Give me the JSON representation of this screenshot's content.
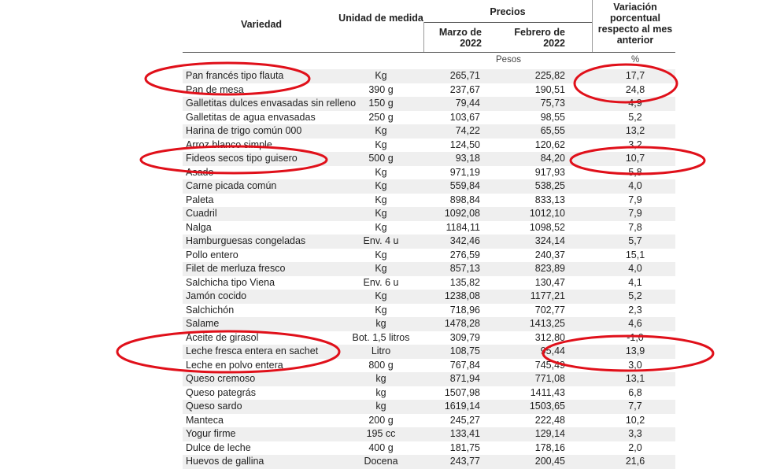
{
  "header": {
    "variedad": "Variedad",
    "unidad": "Unidad de medida",
    "precios": "Precios",
    "marzo": "Marzo de 2022",
    "febrero": "Febrero de 2022",
    "variacion": "Variación porcentual respecto al mes anterior",
    "pesos": "Pesos",
    "pct": "%"
  },
  "rows": [
    {
      "name": "Pan francés tipo flauta",
      "unit": "Kg",
      "mar": "265,71",
      "feb": "225,82",
      "var": "17,7"
    },
    {
      "name": "Pan de mesa",
      "unit": "390 g",
      "mar": "237,67",
      "feb": "190,51",
      "var": "24,8"
    },
    {
      "name": "Galletitas dulces envasadas sin relleno",
      "unit": "150 g",
      "mar": "79,44",
      "feb": "75,73",
      "var": "4,9"
    },
    {
      "name": "Galletitas de agua envasadas",
      "unit": "250 g",
      "mar": "103,67",
      "feb": "98,55",
      "var": "5,2"
    },
    {
      "name": "Harina de trigo común 000",
      "unit": "Kg",
      "mar": "74,22",
      "feb": "65,55",
      "var": "13,2"
    },
    {
      "name": "Arroz blanco simple",
      "unit": "Kg",
      "mar": "124,50",
      "feb": "120,62",
      "var": "3,2"
    },
    {
      "name": "Fideos secos tipo guisero",
      "unit": "500 g",
      "mar": "93,18",
      "feb": "84,20",
      "var": "10,7"
    },
    {
      "name": "Asado",
      "unit": "Kg",
      "mar": "971,19",
      "feb": "917,93",
      "var": "5,8"
    },
    {
      "name": "Carne picada común",
      "unit": "Kg",
      "mar": "559,84",
      "feb": "538,25",
      "var": "4,0"
    },
    {
      "name": "Paleta",
      "unit": "Kg",
      "mar": "898,84",
      "feb": "833,13",
      "var": "7,9"
    },
    {
      "name": "Cuadril",
      "unit": "Kg",
      "mar": "1092,08",
      "feb": "1012,10",
      "var": "7,9"
    },
    {
      "name": "Nalga",
      "unit": "Kg",
      "mar": "1184,11",
      "feb": "1098,52",
      "var": "7,8"
    },
    {
      "name": "Hamburguesas congeladas",
      "unit": "Env. 4 u",
      "mar": "342,46",
      "feb": "324,14",
      "var": "5,7"
    },
    {
      "name": "Pollo entero",
      "unit": "Kg",
      "mar": "276,59",
      "feb": "240,37",
      "var": "15,1"
    },
    {
      "name": "Filet de merluza fresco",
      "unit": "Kg",
      "mar": "857,13",
      "feb": "823,89",
      "var": "4,0"
    },
    {
      "name": "Salchicha tipo Viena",
      "unit": "Env. 6 u",
      "mar": "135,82",
      "feb": "130,47",
      "var": "4,1"
    },
    {
      "name": "Jamón cocido",
      "unit": "Kg",
      "mar": "1238,08",
      "feb": "1177,21",
      "var": "5,2"
    },
    {
      "name": "Salchichón",
      "unit": "Kg",
      "mar": "718,96",
      "feb": "702,77",
      "var": "2,3"
    },
    {
      "name": "Salame",
      "unit": "kg",
      "mar": "1478,28",
      "feb": "1413,25",
      "var": "4,6"
    },
    {
      "name": "Aceite de girasol",
      "unit": "Bot. 1,5 litros",
      "mar": "309,79",
      "feb": "312,80",
      "var": "-1,0"
    },
    {
      "name": "Leche fresca entera en sachet",
      "unit": "Litro",
      "mar": "108,75",
      "feb": "95,44",
      "var": "13,9"
    },
    {
      "name": "Leche en polvo entera",
      "unit": "800 g",
      "mar": "767,84",
      "feb": "745,49",
      "var": "3,0"
    },
    {
      "name": "Queso cremoso",
      "unit": "kg",
      "mar": "871,94",
      "feb": "771,08",
      "var": "13,1"
    },
    {
      "name": "Queso pategrás",
      "unit": "kg",
      "mar": "1507,98",
      "feb": "1411,43",
      "var": "6,8"
    },
    {
      "name": "Queso sardo",
      "unit": "kg",
      "mar": "1619,14",
      "feb": "1503,65",
      "var": "7,7"
    },
    {
      "name": "Manteca",
      "unit": "200 g",
      "mar": "245,27",
      "feb": "222,48",
      "var": "10,2"
    },
    {
      "name": "Yogur firme",
      "unit": "195 cc",
      "mar": "133,41",
      "feb": "129,14",
      "var": "3,3"
    },
    {
      "name": "Dulce de leche",
      "unit": "400 g",
      "mar": "181,75",
      "feb": "178,16",
      "var": "2,0"
    },
    {
      "name": "Huevos de gallina",
      "unit": "Docena",
      "mar": "243,77",
      "feb": "200,45",
      "var": "21,6"
    }
  ],
  "annotation_color": "#e0101a"
}
